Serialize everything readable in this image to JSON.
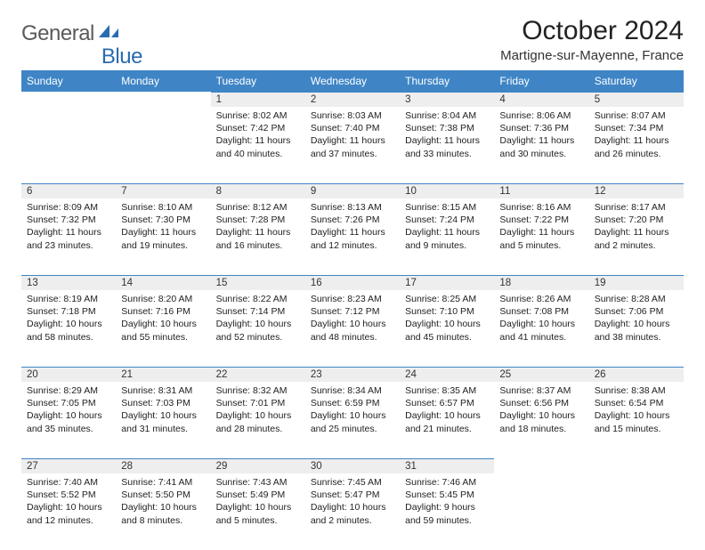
{
  "logo": {
    "text1": "General",
    "text2": "Blue"
  },
  "title": "October 2024",
  "location": "Martigne-sur-Mayenne, France",
  "colors": {
    "header_bg": "#3f85c6",
    "header_text": "#ffffff",
    "daynum_bg": "#eeeeee",
    "cell_border": "#3f85c6",
    "logo_gray": "#5a5a5a",
    "logo_blue": "#2a6bb0"
  },
  "day_headers": [
    "Sunday",
    "Monday",
    "Tuesday",
    "Wednesday",
    "Thursday",
    "Friday",
    "Saturday"
  ],
  "weeks": [
    [
      null,
      null,
      {
        "n": "1",
        "sr": "8:02 AM",
        "ss": "7:42 PM",
        "dl": "11 hours and 40 minutes."
      },
      {
        "n": "2",
        "sr": "8:03 AM",
        "ss": "7:40 PM",
        "dl": "11 hours and 37 minutes."
      },
      {
        "n": "3",
        "sr": "8:04 AM",
        "ss": "7:38 PM",
        "dl": "11 hours and 33 minutes."
      },
      {
        "n": "4",
        "sr": "8:06 AM",
        "ss": "7:36 PM",
        "dl": "11 hours and 30 minutes."
      },
      {
        "n": "5",
        "sr": "8:07 AM",
        "ss": "7:34 PM",
        "dl": "11 hours and 26 minutes."
      }
    ],
    [
      {
        "n": "6",
        "sr": "8:09 AM",
        "ss": "7:32 PM",
        "dl": "11 hours and 23 minutes."
      },
      {
        "n": "7",
        "sr": "8:10 AM",
        "ss": "7:30 PM",
        "dl": "11 hours and 19 minutes."
      },
      {
        "n": "8",
        "sr": "8:12 AM",
        "ss": "7:28 PM",
        "dl": "11 hours and 16 minutes."
      },
      {
        "n": "9",
        "sr": "8:13 AM",
        "ss": "7:26 PM",
        "dl": "11 hours and 12 minutes."
      },
      {
        "n": "10",
        "sr": "8:15 AM",
        "ss": "7:24 PM",
        "dl": "11 hours and 9 minutes."
      },
      {
        "n": "11",
        "sr": "8:16 AM",
        "ss": "7:22 PM",
        "dl": "11 hours and 5 minutes."
      },
      {
        "n": "12",
        "sr": "8:17 AM",
        "ss": "7:20 PM",
        "dl": "11 hours and 2 minutes."
      }
    ],
    [
      {
        "n": "13",
        "sr": "8:19 AM",
        "ss": "7:18 PM",
        "dl": "10 hours and 58 minutes."
      },
      {
        "n": "14",
        "sr": "8:20 AM",
        "ss": "7:16 PM",
        "dl": "10 hours and 55 minutes."
      },
      {
        "n": "15",
        "sr": "8:22 AM",
        "ss": "7:14 PM",
        "dl": "10 hours and 52 minutes."
      },
      {
        "n": "16",
        "sr": "8:23 AM",
        "ss": "7:12 PM",
        "dl": "10 hours and 48 minutes."
      },
      {
        "n": "17",
        "sr": "8:25 AM",
        "ss": "7:10 PM",
        "dl": "10 hours and 45 minutes."
      },
      {
        "n": "18",
        "sr": "8:26 AM",
        "ss": "7:08 PM",
        "dl": "10 hours and 41 minutes."
      },
      {
        "n": "19",
        "sr": "8:28 AM",
        "ss": "7:06 PM",
        "dl": "10 hours and 38 minutes."
      }
    ],
    [
      {
        "n": "20",
        "sr": "8:29 AM",
        "ss": "7:05 PM",
        "dl": "10 hours and 35 minutes."
      },
      {
        "n": "21",
        "sr": "8:31 AM",
        "ss": "7:03 PM",
        "dl": "10 hours and 31 minutes."
      },
      {
        "n": "22",
        "sr": "8:32 AM",
        "ss": "7:01 PM",
        "dl": "10 hours and 28 minutes."
      },
      {
        "n": "23",
        "sr": "8:34 AM",
        "ss": "6:59 PM",
        "dl": "10 hours and 25 minutes."
      },
      {
        "n": "24",
        "sr": "8:35 AM",
        "ss": "6:57 PM",
        "dl": "10 hours and 21 minutes."
      },
      {
        "n": "25",
        "sr": "8:37 AM",
        "ss": "6:56 PM",
        "dl": "10 hours and 18 minutes."
      },
      {
        "n": "26",
        "sr": "8:38 AM",
        "ss": "6:54 PM",
        "dl": "10 hours and 15 minutes."
      }
    ],
    [
      {
        "n": "27",
        "sr": "7:40 AM",
        "ss": "5:52 PM",
        "dl": "10 hours and 12 minutes."
      },
      {
        "n": "28",
        "sr": "7:41 AM",
        "ss": "5:50 PM",
        "dl": "10 hours and 8 minutes."
      },
      {
        "n": "29",
        "sr": "7:43 AM",
        "ss": "5:49 PM",
        "dl": "10 hours and 5 minutes."
      },
      {
        "n": "30",
        "sr": "7:45 AM",
        "ss": "5:47 PM",
        "dl": "10 hours and 2 minutes."
      },
      {
        "n": "31",
        "sr": "7:46 AM",
        "ss": "5:45 PM",
        "dl": "9 hours and 59 minutes."
      },
      null,
      null
    ]
  ],
  "labels": {
    "sunrise": "Sunrise:",
    "sunset": "Sunset:",
    "daylight": "Daylight:"
  }
}
